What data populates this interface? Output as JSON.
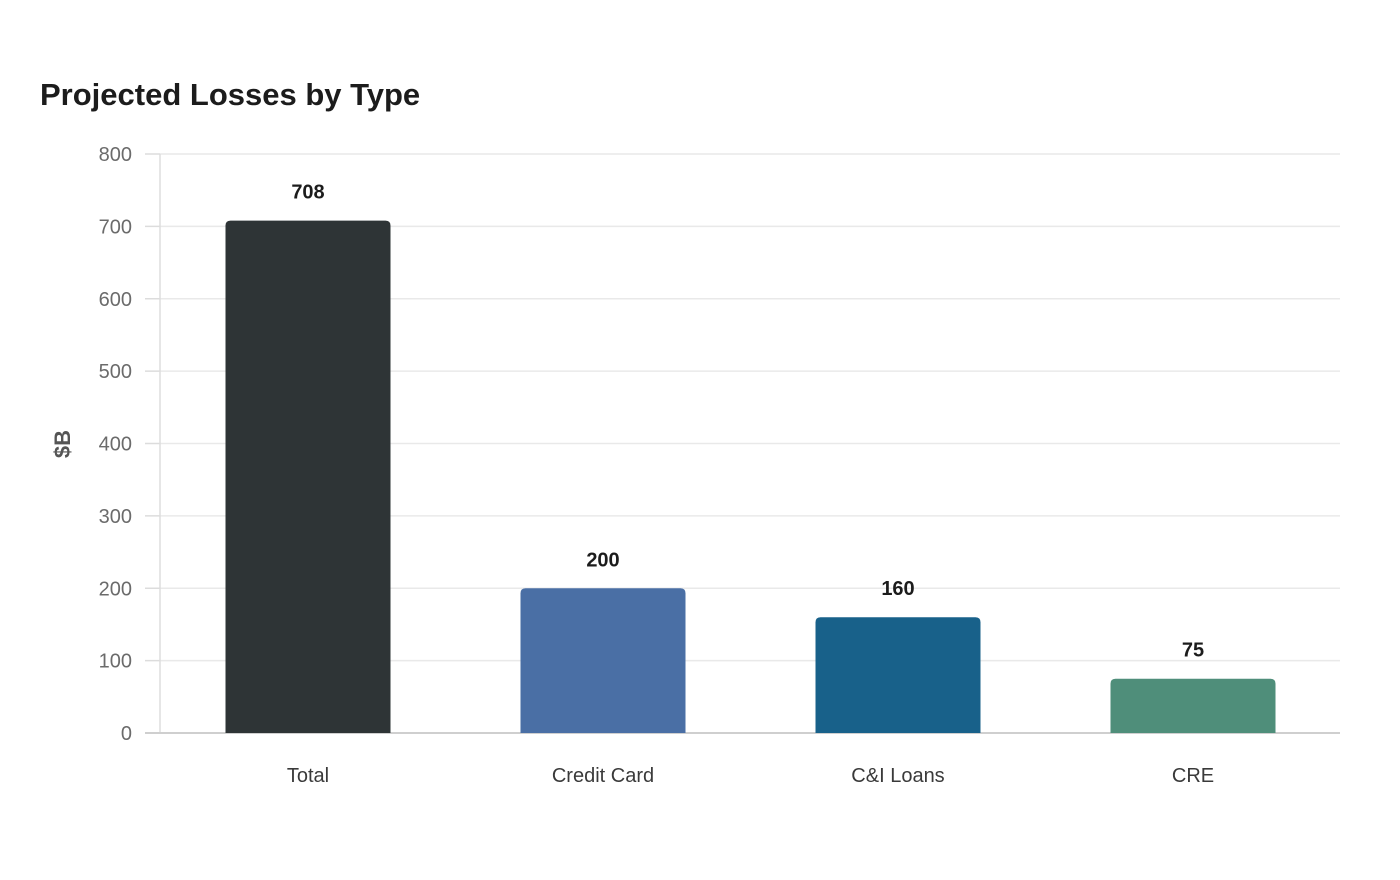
{
  "chart_data": {
    "type": "bar",
    "title": "Projected Losses by Type",
    "xlabel": "",
    "ylabel": "$B",
    "categories": [
      "Total",
      "Credit Card",
      "C&I Loans",
      "CRE"
    ],
    "values": [
      708,
      200,
      160,
      75
    ],
    "value_labels": [
      "708",
      "200",
      "160",
      "75"
    ],
    "colors": [
      "#2e3436",
      "#4a6fa5",
      "#18618a",
      "#4f8e7a"
    ],
    "ylim": [
      0,
      800
    ],
    "yticks": [
      0,
      100,
      200,
      300,
      400,
      500,
      600,
      700,
      800
    ],
    "grid": true,
    "legend": "none"
  }
}
